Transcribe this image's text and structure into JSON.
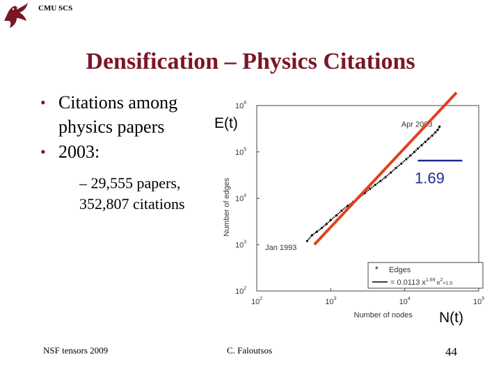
{
  "header": {
    "label": "CMU SCS",
    "logo_icon": "dragon-logo-icon"
  },
  "slide": {
    "title": "Densification – Physics Citations",
    "bullets": [
      {
        "text_line1": "Citations among",
        "text_line2": "physics papers"
      },
      {
        "text": "2003:",
        "sub": {
          "line1": "– 29,555 papers,",
          "line2": "352,807 citations"
        }
      }
    ],
    "annotations": {
      "e_t": "E(t)",
      "slope": "1.69",
      "n_t": "N(t)"
    }
  },
  "footer": {
    "left": "NSF tensors 2009",
    "center": "C. Faloutsos",
    "page": "44"
  },
  "colors": {
    "title": "#7a1626",
    "fit_line": "#e2401e",
    "slope_line": "#1a2d8f",
    "points": "#000000"
  },
  "chart_data": {
    "type": "scatter",
    "xlabel": "Number of nodes",
    "ylabel": "Number of edges",
    "xscale": "log",
    "yscale": "log",
    "xlim": [
      100,
      100000
    ],
    "ylim": [
      100,
      1000000
    ],
    "x_ticks": [
      {
        "base": "10",
        "exp": "2"
      },
      {
        "base": "10",
        "exp": "3"
      },
      {
        "base": "10",
        "exp": "4"
      },
      {
        "base": "10",
        "exp": "5"
      }
    ],
    "y_ticks": [
      {
        "base": "10",
        "exp": "2"
      },
      {
        "base": "10",
        "exp": "3"
      },
      {
        "base": "10",
        "exp": "4"
      },
      {
        "base": "10",
        "exp": "5"
      },
      {
        "base": "10",
        "exp": "6"
      }
    ],
    "point_annotations": [
      {
        "text": "Jan 1993",
        "x": 130,
        "y": 760
      },
      {
        "text": "Apr 2003",
        "x": 9000,
        "y": 350000
      }
    ],
    "series": [
      {
        "name": "Edges",
        "points": [
          [
            480,
            1200
          ],
          [
            560,
            1600
          ],
          [
            650,
            1900
          ],
          [
            760,
            2300
          ],
          [
            880,
            2800
          ],
          [
            1000,
            3400
          ],
          [
            1200,
            4300
          ],
          [
            1400,
            5400
          ],
          [
            1700,
            6900
          ],
          [
            2000,
            8300
          ],
          [
            2400,
            10300
          ],
          [
            2900,
            13000
          ],
          [
            3400,
            16000
          ],
          [
            4000,
            19500
          ],
          [
            4700,
            23500
          ],
          [
            5500,
            28500
          ],
          [
            6500,
            36000
          ],
          [
            7600,
            45000
          ],
          [
            9000,
            56000
          ],
          [
            10500,
            70000
          ],
          [
            12000,
            84000
          ],
          [
            13500,
            100000
          ],
          [
            15000,
            118000
          ],
          [
            17000,
            140000
          ],
          [
            19000,
            165000
          ],
          [
            21000,
            192000
          ],
          [
            23500,
            225000
          ],
          [
            26000,
            265000
          ],
          [
            28000,
            300000
          ],
          [
            29555,
            352807
          ]
        ]
      },
      {
        "name": "= 0.0113 x^1.69 R^2=1.0",
        "fit": {
          "coef": 0.0113,
          "exp": 1.69,
          "r2": 1.0
        }
      }
    ],
    "legend": {
      "placement": "bottom-right",
      "entries": [
        {
          "label": "Edges"
        },
        {
          "label_prefix": "= 0.0113 x",
          "label_exp": "1.69",
          "label_mid": " R",
          "label_exp2": "2",
          "label_suffix": "=1.0"
        }
      ]
    },
    "overlay_lines": [
      {
        "name": "red-fit-line",
        "from": [
          600,
          1000
        ],
        "to": [
          50000,
          1900000
        ]
      },
      {
        "name": "slope-horizontal",
        "from": [
          15000,
          65000
        ],
        "to": [
          60000,
          65000
        ]
      }
    ]
  }
}
